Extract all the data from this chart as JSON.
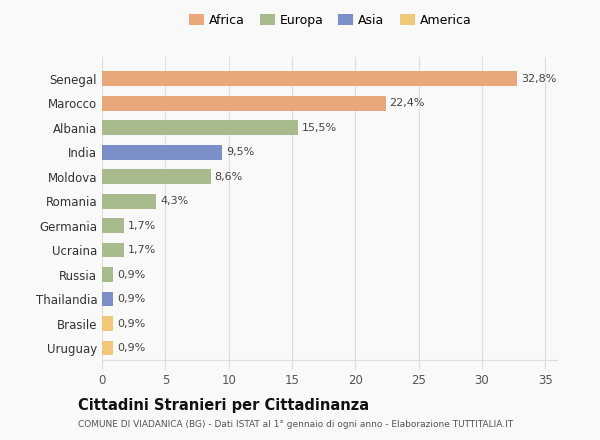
{
  "categories": [
    "Uruguay",
    "Brasile",
    "Thailandia",
    "Russia",
    "Ucraina",
    "Germania",
    "Romania",
    "Moldova",
    "India",
    "Albania",
    "Marocco",
    "Senegal"
  ],
  "values": [
    0.9,
    0.9,
    0.9,
    0.9,
    1.7,
    1.7,
    4.3,
    8.6,
    9.5,
    15.5,
    22.4,
    32.8
  ],
  "labels": [
    "0,9%",
    "0,9%",
    "0,9%",
    "0,9%",
    "1,7%",
    "1,7%",
    "4,3%",
    "8,6%",
    "9,5%",
    "15,5%",
    "22,4%",
    "32,8%"
  ],
  "colors": [
    "#F0C87A",
    "#F0C87A",
    "#7B8EC8",
    "#A8BB8C",
    "#A8BB8C",
    "#A8BB8C",
    "#A8BB8C",
    "#A8BB8C",
    "#7B8EC8",
    "#A8BB8C",
    "#E8A87C",
    "#E8A87C"
  ],
  "legend_labels": [
    "Africa",
    "Europa",
    "Asia",
    "America"
  ],
  "legend_colors": [
    "#E8A87C",
    "#A8BB8C",
    "#7B8EC8",
    "#F0C87A"
  ],
  "xlim": [
    0,
    36
  ],
  "xticks": [
    0,
    5,
    10,
    15,
    20,
    25,
    30,
    35
  ],
  "title": "Cittadini Stranieri per Cittadinanza",
  "subtitle": "COMUNE DI VIADANICA (BG) - Dati ISTAT al 1° gennaio di ogni anno - Elaborazione TUTTITALIA.IT",
  "background_color": "#f9f9f9",
  "grid_color": "#dddddd"
}
